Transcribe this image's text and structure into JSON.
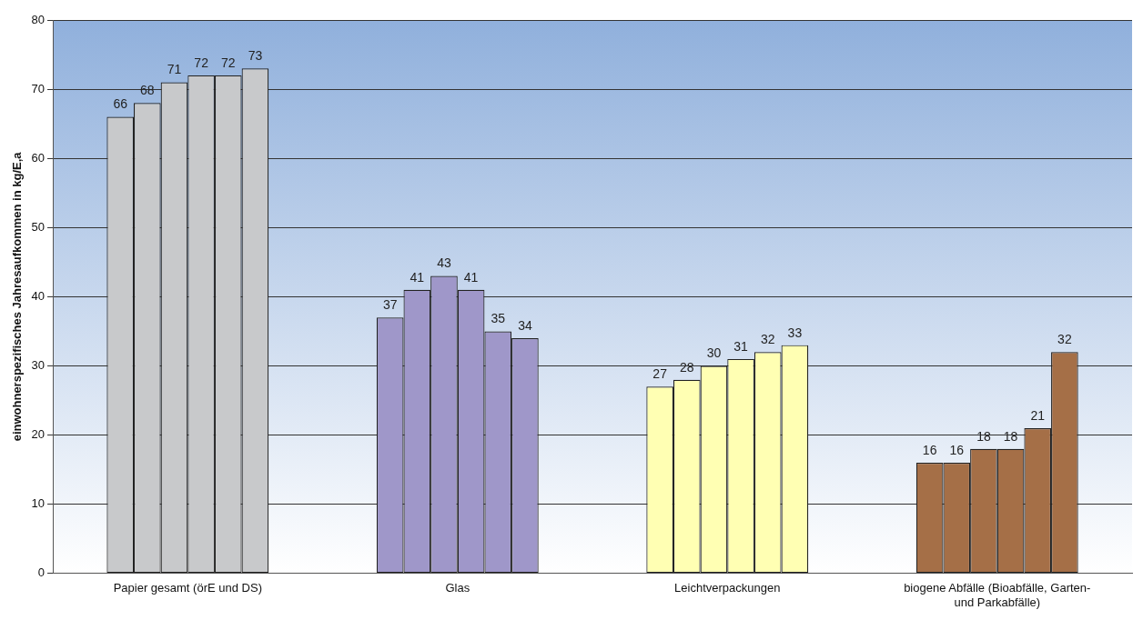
{
  "chart_data": {
    "type": "bar",
    "ylabel": "einwohnerspezifisches Jahresaufkommen in kg/E,a",
    "categories": [
      "Papier gesamt (örE und DS)",
      "Glas",
      "Leichtverpackungen",
      "biogene Abfälle (Bioabfälle, Garten- und Parkabfälle)"
    ],
    "series": [
      {
        "colors": [
          "#c8c9cb",
          "#9f97c9",
          "#ffffb3",
          "#a56f47"
        ],
        "values": [
          66,
          37,
          27,
          16
        ]
      },
      {
        "colors": [
          "#c8c9cb",
          "#9f97c9",
          "#ffffb3",
          "#a56f47"
        ],
        "values": [
          68,
          41,
          28,
          16
        ]
      },
      {
        "colors": [
          "#c8c9cb",
          "#9f97c9",
          "#ffffb3",
          "#a56f47"
        ],
        "values": [
          71,
          43,
          30,
          18
        ]
      },
      {
        "colors": [
          "#c8c9cb",
          "#9f97c9",
          "#ffffb3",
          "#a56f47"
        ],
        "values": [
          72,
          41,
          31,
          18
        ]
      },
      {
        "colors": [
          "#c8c9cb",
          "#9f97c9",
          "#ffffb3",
          "#a56f47"
        ],
        "values": [
          72,
          35,
          32,
          21
        ]
      },
      {
        "colors": [
          "#c8c9cb",
          "#9f97c9",
          "#ffffb3",
          "#a56f47"
        ],
        "values": [
          73,
          34,
          33,
          32
        ]
      }
    ],
    "ylim": [
      0,
      80
    ],
    "yticks": [
      0,
      10,
      20,
      30,
      40,
      50,
      60,
      70,
      80
    ],
    "grid": "y",
    "data_labels": true
  }
}
